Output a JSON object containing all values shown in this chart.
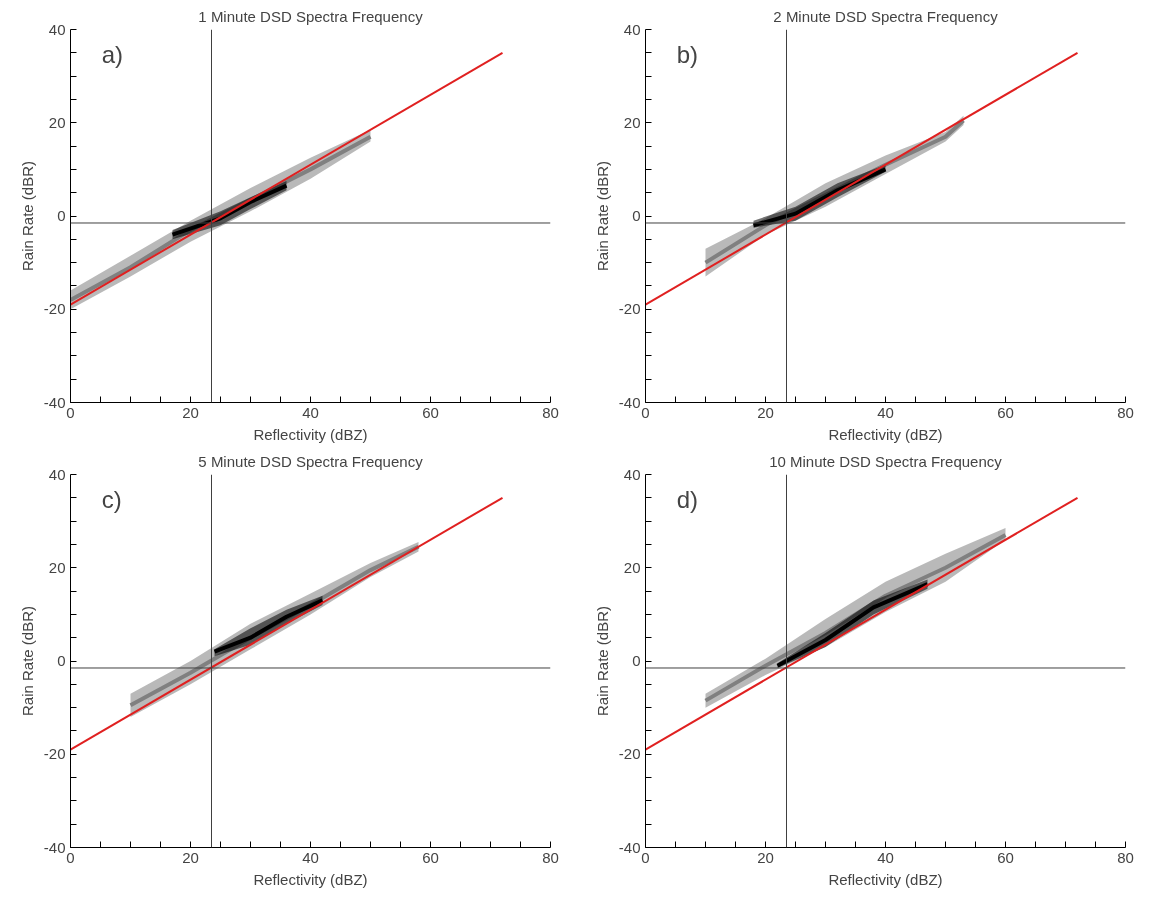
{
  "chart_data": [
    {
      "type": "line",
      "title": "1 Minute DSD Spectra Frequency",
      "xlabel": "Reflectivity (dBZ)",
      "ylabel": "Rain Rate (dBR)",
      "annotations": [
        "a)"
      ],
      "xlim": [
        0,
        80
      ],
      "ylim": [
        -40,
        40
      ],
      "xticks": [
        0,
        {
          "value": 5,
          "label": null
        },
        {
          "value": 10,
          "label": null
        },
        {
          "value": 15,
          "label": null
        },
        20,
        {
          "value": 25,
          "label": null
        },
        {
          "value": 30,
          "label": null
        },
        {
          "value": 35,
          "label": null
        },
        40,
        {
          "value": 45,
          "label": null
        },
        {
          "value": 50,
          "label": null
        },
        {
          "value": 55,
          "label": null
        },
        60,
        {
          "value": 65,
          "label": null
        },
        {
          "value": 70,
          "label": null
        },
        {
          "value": 75,
          "label": null
        },
        80
      ],
      "yticks": [
        -40,
        {
          "value": -35,
          "label": null
        },
        {
          "value": -30,
          "label": null
        },
        {
          "value": -25,
          "label": null
        },
        -20,
        {
          "value": -15,
          "label": null
        },
        {
          "value": -10,
          "label": null
        },
        {
          "value": -5,
          "label": null
        },
        0,
        {
          "value": 5,
          "label": null
        },
        {
          "value": 10,
          "label": null
        },
        {
          "value": 15,
          "label": null
        },
        20,
        {
          "value": 25,
          "label": null
        },
        {
          "value": 30,
          "label": null
        },
        {
          "value": 35,
          "label": null
        },
        40
      ],
      "grid": false,
      "ref_lines": [
        {
          "axis": "x",
          "value": 23.5,
          "color": "#404040"
        },
        {
          "axis": "y",
          "value": -1.5,
          "color": "#404040"
        }
      ],
      "series": [
        {
          "color": "#808080",
          "x": [
            0,
            10,
            20,
            30,
            40,
            50
          ],
          "values": [
            -18,
            -11,
            -3,
            3.5,
            10,
            17
          ],
          "lower": [
            -20,
            -13,
            -5.5,
            1,
            8,
            16
          ],
          "upper": [
            -16,
            -8.5,
            -1,
            6,
            12.5,
            18.5
          ]
        },
        {
          "color": "#000000",
          "x": [
            17,
            25,
            30,
            36
          ],
          "values": [
            -4,
            -0.5,
            3,
            6.5
          ],
          "lower": [
            -5,
            -2,
            1.5,
            5.5
          ],
          "upper": [
            -3,
            1,
            4,
            7.5
          ]
        },
        {
          "color": "#e02020",
          "x": [
            0,
            72
          ],
          "values": [
            -19,
            35
          ]
        }
      ]
    },
    {
      "type": "line",
      "title": "2 Minute DSD Spectra Frequency",
      "xlabel": "Reflectivity (dBZ)",
      "ylabel": "Rain Rate (dBR)",
      "annotations": [
        "b)"
      ],
      "xlim": [
        0,
        80
      ],
      "ylim": [
        -40,
        40
      ],
      "xticks": [
        0,
        {
          "value": 5,
          "label": null
        },
        {
          "value": 10,
          "label": null
        },
        {
          "value": 15,
          "label": null
        },
        20,
        {
          "value": 25,
          "label": null
        },
        {
          "value": 30,
          "label": null
        },
        {
          "value": 35,
          "label": null
        },
        40,
        {
          "value": 45,
          "label": null
        },
        {
          "value": 50,
          "label": null
        },
        {
          "value": 55,
          "label": null
        },
        60,
        {
          "value": 65,
          "label": null
        },
        {
          "value": 70,
          "label": null
        },
        {
          "value": 75,
          "label": null
        },
        80
      ],
      "yticks": [
        -40,
        {
          "value": -35,
          "label": null
        },
        {
          "value": -30,
          "label": null
        },
        {
          "value": -25,
          "label": null
        },
        -20,
        {
          "value": -15,
          "label": null
        },
        {
          "value": -10,
          "label": null
        },
        {
          "value": -5,
          "label": null
        },
        0,
        {
          "value": 5,
          "label": null
        },
        {
          "value": 10,
          "label": null
        },
        {
          "value": 15,
          "label": null
        },
        20,
        {
          "value": 25,
          "label": null
        },
        {
          "value": 30,
          "label": null
        },
        {
          "value": 35,
          "label": null
        },
        40
      ],
      "grid": false,
      "ref_lines": [
        {
          "axis": "x",
          "value": 23.5,
          "color": "#404040"
        },
        {
          "axis": "y",
          "value": -1.5,
          "color": "#404040"
        }
      ],
      "series": [
        {
          "color": "#808080",
          "x": [
            10,
            20,
            30,
            40,
            50,
            53
          ],
          "values": [
            -10,
            -2,
            4.5,
            11,
            17,
            20.5
          ],
          "lower": [
            -13,
            -4,
            2,
            9,
            16,
            19.5
          ],
          "upper": [
            -7,
            -0.5,
            7,
            13,
            18,
            21.5
          ]
        },
        {
          "color": "#000000",
          "x": [
            18,
            25,
            32,
            40
          ],
          "values": [
            -2,
            0.5,
            5.5,
            10
          ],
          "lower": [
            -2.5,
            -1,
            4,
            9.5
          ],
          "upper": [
            -1,
            2,
            7,
            11
          ]
        },
        {
          "color": "#e02020",
          "x": [
            0,
            72
          ],
          "values": [
            -19,
            35
          ]
        }
      ]
    },
    {
      "type": "line",
      "title": "5 Minute DSD Spectra Frequency",
      "xlabel": "Reflectivity (dBZ)",
      "ylabel": "Rain Rate (dBR)",
      "annotations": [
        "c)"
      ],
      "xlim": [
        0,
        80
      ],
      "ylim": [
        -40,
        40
      ],
      "xticks": [
        0,
        {
          "value": 5,
          "label": null
        },
        {
          "value": 10,
          "label": null
        },
        {
          "value": 15,
          "label": null
        },
        20,
        {
          "value": 25,
          "label": null
        },
        {
          "value": 30,
          "label": null
        },
        {
          "value": 35,
          "label": null
        },
        40,
        {
          "value": 45,
          "label": null
        },
        {
          "value": 50,
          "label": null
        },
        {
          "value": 55,
          "label": null
        },
        60,
        {
          "value": 65,
          "label": null
        },
        {
          "value": 70,
          "label": null
        },
        {
          "value": 75,
          "label": null
        },
        80
      ],
      "yticks": [
        -40,
        {
          "value": -35,
          "label": null
        },
        {
          "value": -30,
          "label": null
        },
        {
          "value": -25,
          "label": null
        },
        -20,
        {
          "value": -15,
          "label": null
        },
        {
          "value": -10,
          "label": null
        },
        {
          "value": -5,
          "label": null
        },
        0,
        {
          "value": 5,
          "label": null
        },
        {
          "value": 10,
          "label": null
        },
        {
          "value": 15,
          "label": null
        },
        20,
        {
          "value": 25,
          "label": null
        },
        {
          "value": 30,
          "label": null
        },
        {
          "value": 35,
          "label": null
        },
        40
      ],
      "grid": false,
      "ref_lines": [
        {
          "axis": "x",
          "value": 23.5,
          "color": "#404040"
        },
        {
          "axis": "y",
          "value": -1.5,
          "color": "#404040"
        }
      ],
      "series": [
        {
          "color": "#808080",
          "x": [
            10,
            20,
            30,
            40,
            50,
            58
          ],
          "values": [
            -9.5,
            -2.5,
            5,
            12,
            19.5,
            24.5
          ],
          "lower": [
            -12,
            -5,
            2.5,
            10,
            18,
            23.5
          ],
          "upper": [
            -7,
            0,
            8,
            14.5,
            21,
            25.5
          ]
        },
        {
          "color": "#000000",
          "x": [
            24,
            30,
            36,
            42
          ],
          "values": [
            2,
            5,
            9.5,
            13
          ],
          "lower": [
            1,
            3.5,
            8,
            12
          ],
          "upper": [
            2.5,
            7,
            11,
            14
          ]
        },
        {
          "color": "#e02020",
          "x": [
            0,
            72
          ],
          "values": [
            -19,
            35
          ]
        }
      ]
    },
    {
      "type": "line",
      "title": "10 Minute DSD Spectra Frequency",
      "xlabel": "Reflectivity (dBZ)",
      "ylabel": "Rain Rate (dBR)",
      "annotations": [
        "d)"
      ],
      "xlim": [
        0,
        80
      ],
      "ylim": [
        -40,
        40
      ],
      "xticks": [
        0,
        {
          "value": 5,
          "label": null
        },
        {
          "value": 10,
          "label": null
        },
        {
          "value": 15,
          "label": null
        },
        20,
        {
          "value": 25,
          "label": null
        },
        {
          "value": 30,
          "label": null
        },
        {
          "value": 35,
          "label": null
        },
        40,
        {
          "value": 45,
          "label": null
        },
        {
          "value": 50,
          "label": null
        },
        {
          "value": 55,
          "label": null
        },
        60,
        {
          "value": 65,
          "label": null
        },
        {
          "value": 70,
          "label": null
        },
        {
          "value": 75,
          "label": null
        },
        80
      ],
      "yticks": [
        -40,
        {
          "value": -35,
          "label": null
        },
        {
          "value": -30,
          "label": null
        },
        {
          "value": -25,
          "label": null
        },
        -20,
        {
          "value": -15,
          "label": null
        },
        {
          "value": -10,
          "label": null
        },
        {
          "value": -5,
          "label": null
        },
        0,
        {
          "value": 5,
          "label": null
        },
        {
          "value": 10,
          "label": null
        },
        {
          "value": 15,
          "label": null
        },
        20,
        {
          "value": 25,
          "label": null
        },
        {
          "value": 30,
          "label": null
        },
        {
          "value": 35,
          "label": null
        },
        40
      ],
      "grid": false,
      "ref_lines": [
        {
          "axis": "x",
          "value": 23.5,
          "color": "#404040"
        },
        {
          "axis": "y",
          "value": -1.5,
          "color": "#404040"
        }
      ],
      "series": [
        {
          "color": "#808080",
          "x": [
            10,
            20,
            30,
            40,
            50,
            60
          ],
          "values": [
            -8.5,
            -1,
            6,
            14,
            20,
            27
          ],
          "lower": [
            -10,
            -3,
            3,
            10.5,
            17,
            26
          ],
          "upper": [
            -7,
            0.5,
            9,
            17,
            23,
            28.5
          ]
        },
        {
          "color": "#000000",
          "x": [
            22,
            30,
            38,
            47
          ],
          "values": [
            -1,
            4.5,
            11.5,
            16.5
          ],
          "lower": [
            -1.5,
            3,
            10,
            15.5
          ],
          "upper": [
            -0.5,
            6,
            13,
            17.5
          ]
        },
        {
          "color": "#e02020",
          "x": [
            0,
            72
          ],
          "values": [
            -19,
            35
          ]
        }
      ]
    }
  ]
}
